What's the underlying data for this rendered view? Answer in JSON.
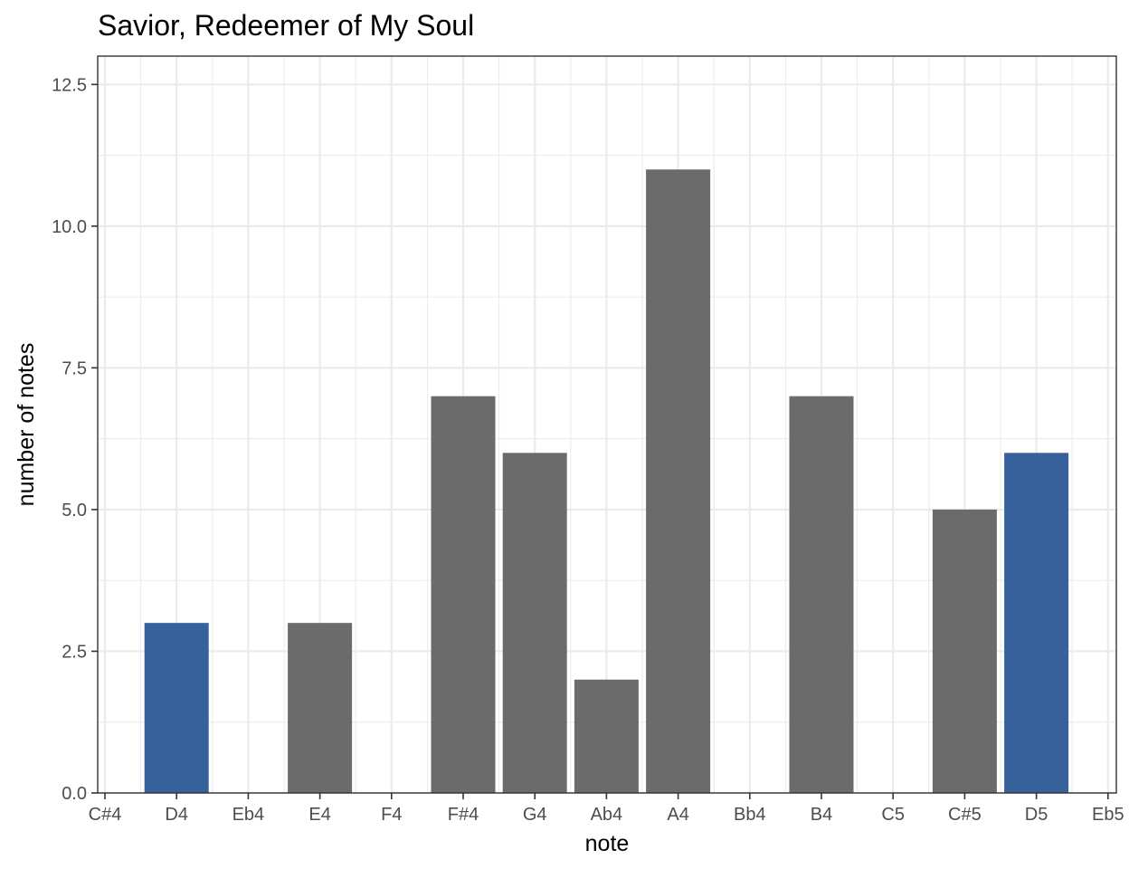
{
  "colors": {
    "highlight": "#36619b",
    "default": "#6b6b6b"
  },
  "chart_data": {
    "type": "bar",
    "title": "Savior, Redeemer of My Soul",
    "xlabel": "note",
    "ylabel": "number of notes",
    "categories": [
      "C#4",
      "D4",
      "Eb4",
      "E4",
      "F4",
      "F#4",
      "G4",
      "Ab4",
      "A4",
      "Bb4",
      "B4",
      "C5",
      "C#5",
      "D5",
      "Eb5"
    ],
    "values": [
      0,
      3,
      0,
      3,
      0,
      7,
      6,
      2,
      11,
      0,
      7,
      0,
      5,
      6,
      0
    ],
    "highlighted": [
      "D4",
      "D5"
    ],
    "ylim": [
      0,
      13
    ],
    "yticks": [
      0.0,
      2.5,
      5.0,
      7.5,
      10.0,
      12.5
    ],
    "ytick_labels": [
      "0.0",
      "2.5",
      "5.0",
      "7.5",
      "10.0",
      "12.5"
    ],
    "grid": true,
    "legend": "none"
  }
}
